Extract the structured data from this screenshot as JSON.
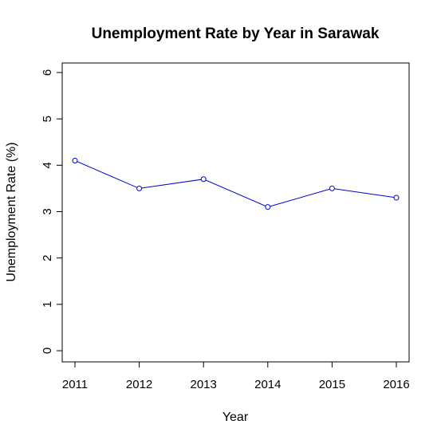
{
  "chart_data": {
    "type": "line",
    "title": "Unemployment Rate by Year in Sarawak",
    "xlabel": "Year",
    "ylabel": "Unemployment Rate (%)",
    "x": [
      2011,
      2012,
      2013,
      2014,
      2015,
      2016
    ],
    "x_tick_labels": [
      "2011",
      "2012",
      "2013",
      "2014",
      "2015",
      "2016"
    ],
    "y_ticks": [
      0,
      1,
      2,
      3,
      4,
      5,
      6
    ],
    "y_tick_labels": [
      "0",
      "1",
      "2",
      "3",
      "4",
      "5",
      "6"
    ],
    "series": [
      {
        "values": [
          4.1,
          3.5,
          3.7,
          3.1,
          3.5,
          3.3
        ],
        "color": "#0000cd",
        "marker": "open-circle"
      }
    ],
    "xlim": [
      2011,
      2016
    ],
    "ylim": [
      0,
      6
    ],
    "grid": false,
    "legend": "none",
    "frame": true
  }
}
